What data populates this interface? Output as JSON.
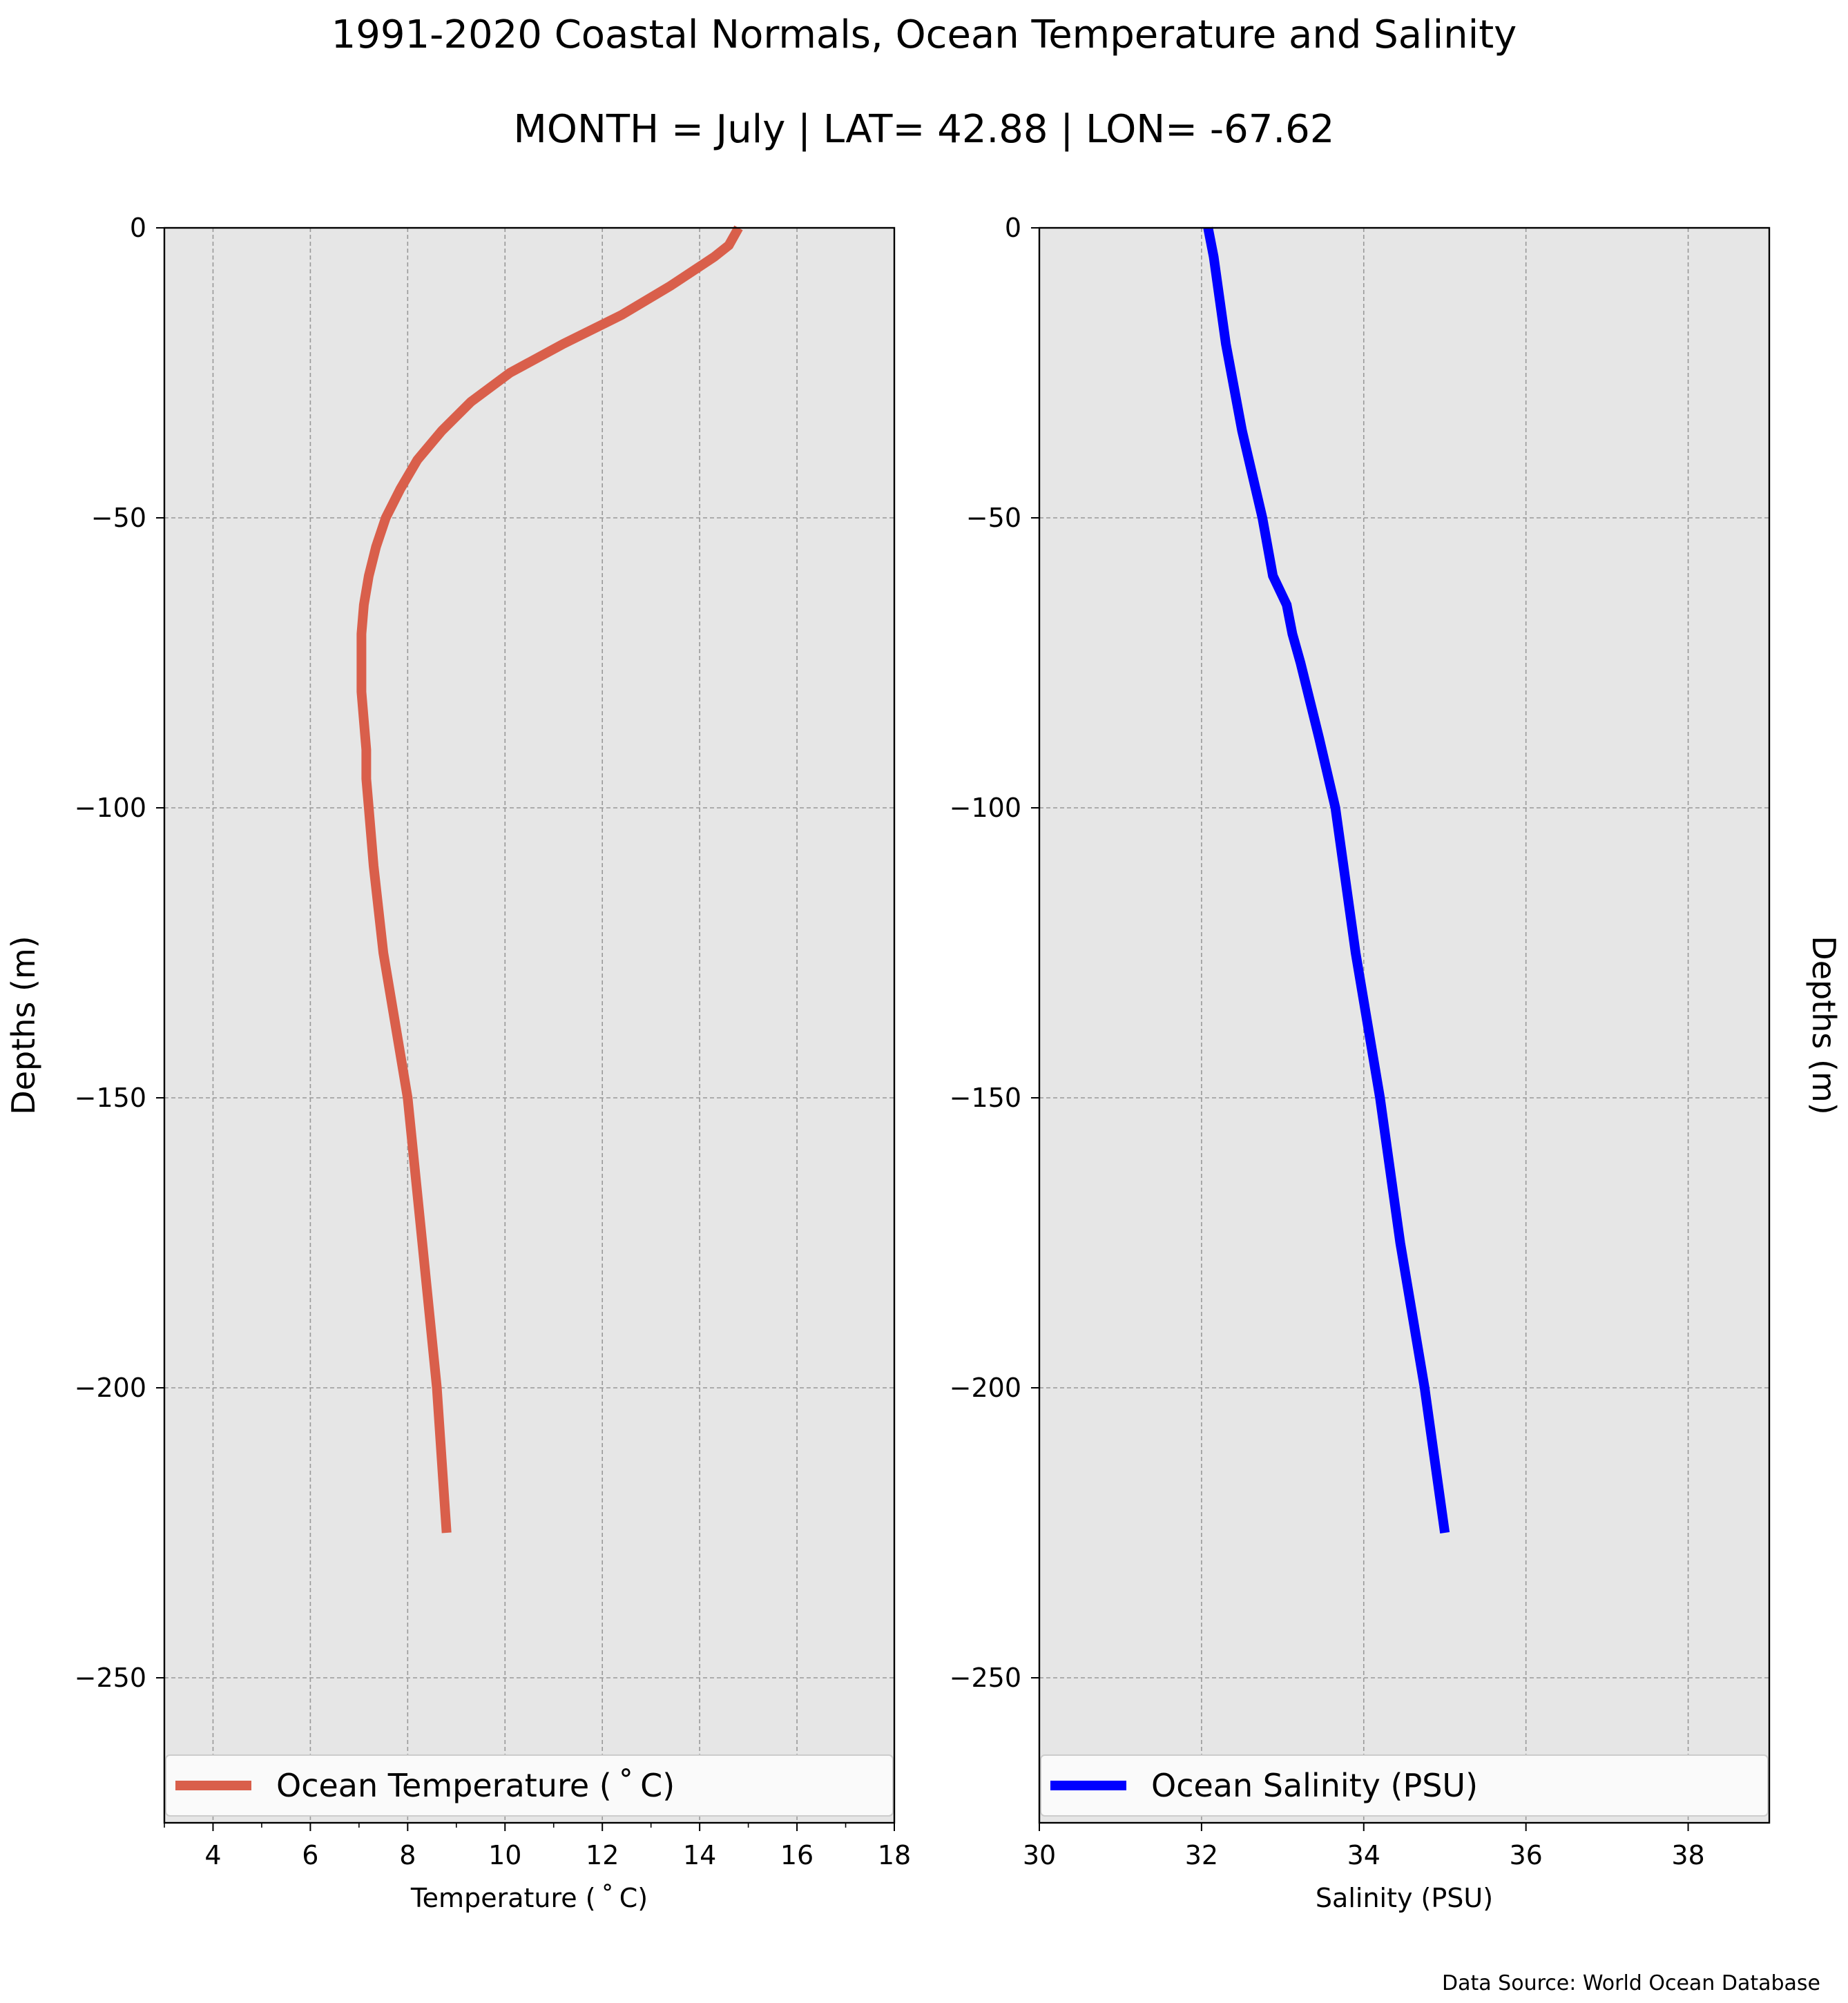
{
  "figure": {
    "title": "1991-2020 Coastal Normals, Ocean Temperature and Salinity",
    "subtitle": "MONTH = July | LAT= 42.88 | LON= -67.62",
    "source": "Data Source: World Ocean Database"
  },
  "colors": {
    "temperature_line": "#d95f4b",
    "salinity_line": "#0000ff",
    "plot_background": "#e6e6e6",
    "grid": "#999999"
  },
  "chart_data": [
    {
      "type": "line",
      "xlabel": "Temperature ($^\\circ$C)",
      "xlabel_display": "Temperature ( ˚ C)",
      "ylabel": "Depths (m)",
      "xlim": [
        3,
        18
      ],
      "ylim": [
        -275,
        0
      ],
      "xticks": [
        4,
        6,
        8,
        10,
        12,
        14,
        16,
        18
      ],
      "minor_xticks": [
        3,
        5,
        7,
        9,
        11,
        13,
        15,
        17
      ],
      "yticks": [
        0,
        -50,
        -100,
        -150,
        -200,
        -250
      ],
      "ytick_labels": [
        "0",
        "−50",
        "−100",
        "−150",
        "−200",
        "−250"
      ],
      "grid": true,
      "legend_position": "lower",
      "series": [
        {
          "name": "Ocean Temperature ( ˚ C)",
          "x": [
            14.8,
            14.6,
            14.3,
            13.4,
            12.4,
            11.2,
            10.1,
            9.3,
            8.7,
            8.2,
            7.85,
            7.55,
            7.35,
            7.2,
            7.1,
            7.05,
            7.05,
            7.1,
            7.15,
            7.15,
            7.2,
            7.3,
            7.5,
            8.0,
            8.3,
            8.6,
            8.8
          ],
          "y": [
            0,
            -3,
            -5,
            -10,
            -15,
            -20,
            -25,
            -30,
            -35,
            -40,
            -45,
            -50,
            -55,
            -60,
            -65,
            -70,
            -80,
            -85,
            -90,
            -95,
            -100,
            -110,
            -125,
            -150,
            -175,
            -200,
            -225
          ]
        }
      ]
    },
    {
      "type": "line",
      "xlabel": "Salinity (PSU)",
      "ylabel": "Depths (m)",
      "xlim": [
        30,
        39
      ],
      "ylim": [
        -275,
        0
      ],
      "xticks": [
        30,
        32,
        34,
        36,
        38
      ],
      "yticks": [
        0,
        -50,
        -100,
        -150,
        -200,
        -250
      ],
      "ytick_labels": [
        "0",
        "−50",
        "−100",
        "−150",
        "−200",
        "−250"
      ],
      "grid": true,
      "legend_position": "lower",
      "series": [
        {
          "name": "Ocean Salinity (PSU)",
          "x": [
            32.08,
            32.15,
            32.3,
            32.5,
            32.75,
            32.88,
            33.05,
            33.12,
            33.22,
            33.45,
            33.65,
            33.9,
            34.2,
            34.45,
            34.75,
            35.0
          ],
          "y": [
            0,
            -5,
            -20,
            -35,
            -50,
            -60,
            -65,
            -70,
            -75,
            -88,
            -100,
            -125,
            -150,
            -175,
            -200,
            -225
          ]
        }
      ]
    }
  ]
}
